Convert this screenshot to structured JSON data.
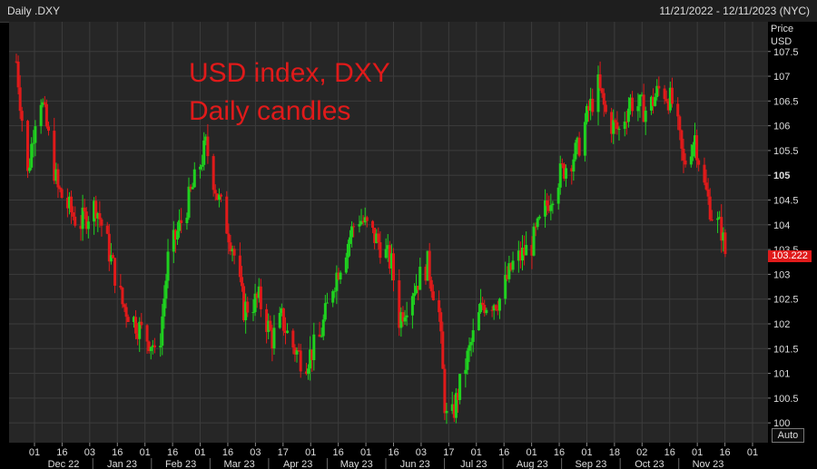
{
  "header": {
    "instrument": "Daily .DXY",
    "date_range": "11/21/2022 - 12/11/2023 (NYC)"
  },
  "overlay": {
    "line1": "USD index, DXY",
    "line2": "Daily candles"
  },
  "axis_label": {
    "line1": "Price",
    "line2": "USD"
  },
  "last_price": "103.222",
  "auto_button": "Auto",
  "colors": {
    "up": "#1fd11f",
    "down": "#e01a1a",
    "background": "#262626",
    "grid": "#3c3c3c"
  },
  "chart_data": {
    "type": "candlestick",
    "y_ticks": [
      "100",
      "100.5",
      "101",
      "101.5",
      "102",
      "102.5",
      "103",
      "103.5",
      "104",
      "104.5",
      "105",
      "105.5",
      "106",
      "106.5",
      "107",
      "107.5"
    ],
    "bold_tick": "105",
    "ylim": [
      99.6,
      108.1
    ],
    "x_day_ticks": [
      "01",
      "16",
      "03",
      "16",
      "01",
      "16",
      "01",
      "16",
      "03",
      "17",
      "01",
      "16",
      "01",
      "16",
      "03",
      "17",
      "01",
      "16",
      "01",
      "16",
      "01",
      "18",
      "02",
      "16",
      "01",
      "16",
      "01"
    ],
    "x_month_labels": [
      "Dec 22",
      "Jan 23",
      "Feb 23",
      "Mar 23",
      "Apr 23",
      "May 23",
      "Jun 23",
      "Jul 23",
      "Aug 23",
      "Sep 23",
      "Oct 23",
      "Nov 23"
    ],
    "anchors": [
      {
        "day": 0,
        "price": 107.3
      },
      {
        "day": 6,
        "price": 105.0
      },
      {
        "day": 12,
        "price": 106.8
      },
      {
        "day": 22,
        "price": 104.7
      },
      {
        "day": 33,
        "price": 104.0
      },
      {
        "day": 42,
        "price": 104.4
      },
      {
        "day": 48,
        "price": 103.6
      },
      {
        "day": 56,
        "price": 102.4
      },
      {
        "day": 67,
        "price": 101.8
      },
      {
        "day": 72,
        "price": 101.6
      },
      {
        "day": 74,
        "price": 101.0
      },
      {
        "day": 80,
        "price": 103.3
      },
      {
        "day": 91,
        "price": 104.5
      },
      {
        "day": 100,
        "price": 105.6
      },
      {
        "day": 106,
        "price": 104.6
      },
      {
        "day": 114,
        "price": 103.6
      },
      {
        "day": 120,
        "price": 102.3
      },
      {
        "day": 128,
        "price": 102.5
      },
      {
        "day": 135,
        "price": 101.7
      },
      {
        "day": 140,
        "price": 102.1
      },
      {
        "day": 145,
        "price": 101.6
      },
      {
        "day": 152,
        "price": 101.2
      },
      {
        "day": 160,
        "price": 101.7
      },
      {
        "day": 167,
        "price": 102.8
      },
      {
        "day": 180,
        "price": 104.2
      },
      {
        "day": 192,
        "price": 103.6
      },
      {
        "day": 198,
        "price": 103.2
      },
      {
        "day": 202,
        "price": 102.1
      },
      {
        "day": 209,
        "price": 102.7
      },
      {
        "day": 217,
        "price": 103.2
      },
      {
        "day": 223,
        "price": 102.2
      },
      {
        "day": 226,
        "price": 100.4
      },
      {
        "day": 228,
        "price": 99.8
      },
      {
        "day": 233,
        "price": 100.6
      },
      {
        "day": 240,
        "price": 101.6
      },
      {
        "day": 246,
        "price": 102.4
      },
      {
        "day": 255,
        "price": 102.5
      },
      {
        "day": 262,
        "price": 103.2
      },
      {
        "day": 272,
        "price": 103.6
      },
      {
        "day": 279,
        "price": 104.3
      },
      {
        "day": 285,
        "price": 104.9
      },
      {
        "day": 290,
        "price": 105.2
      },
      {
        "day": 296,
        "price": 105.5
      },
      {
        "day": 302,
        "price": 106.3
      },
      {
        "day": 307,
        "price": 106.8
      },
      {
        "day": 312,
        "price": 106.1
      },
      {
        "day": 318,
        "price": 105.9
      },
      {
        "day": 324,
        "price": 106.5
      },
      {
        "day": 333,
        "price": 106.3
      },
      {
        "day": 340,
        "price": 106.8
      },
      {
        "day": 347,
        "price": 106.4
      },
      {
        "day": 352,
        "price": 105.2
      },
      {
        "day": 358,
        "price": 105.8
      },
      {
        "day": 362,
        "price": 104.9
      },
      {
        "day": 368,
        "price": 104.1
      },
      {
        "day": 372,
        "price": 103.9
      },
      {
        "day": 375,
        "price": 103.2
      }
    ],
    "x_range_days": [
      0,
      375
    ]
  }
}
